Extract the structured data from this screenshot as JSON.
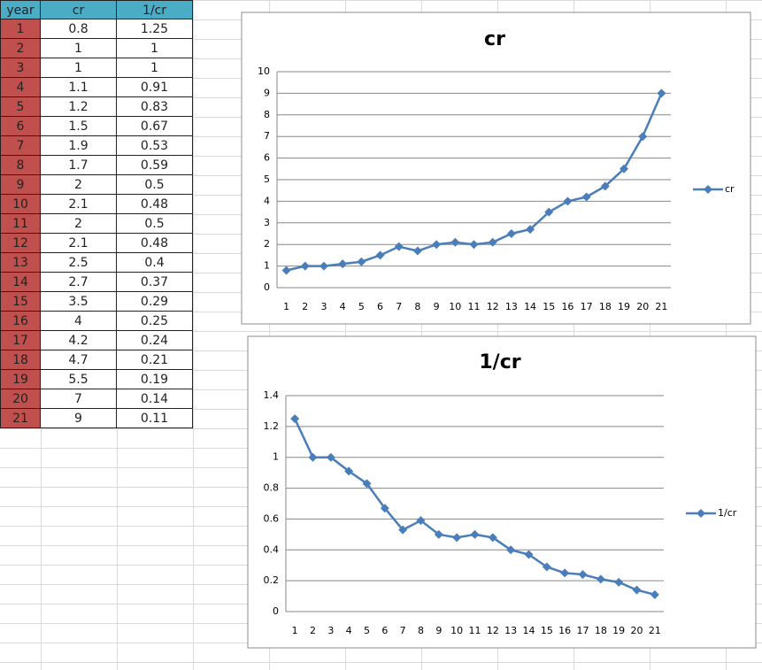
{
  "table": {
    "header": [
      "year",
      "cr",
      "1/cr"
    ],
    "rows": [
      [
        "1",
        "0.8",
        "1.25"
      ],
      [
        "2",
        "1",
        "1"
      ],
      [
        "3",
        "1",
        "1"
      ],
      [
        "4",
        "1.1",
        "0.91"
      ],
      [
        "5",
        "1.2",
        "0.83"
      ],
      [
        "6",
        "1.5",
        "0.67"
      ],
      [
        "7",
        "1.9",
        "0.53"
      ],
      [
        "8",
        "1.7",
        "0.59"
      ],
      [
        "9",
        "2",
        "0.5"
      ],
      [
        "10",
        "2.1",
        "0.48"
      ],
      [
        "11",
        "2",
        "0.5"
      ],
      [
        "12",
        "2.1",
        "0.48"
      ],
      [
        "13",
        "2.5",
        "0.4"
      ],
      [
        "14",
        "2.7",
        "0.37"
      ],
      [
        "15",
        "3.5",
        "0.29"
      ],
      [
        "16",
        "4",
        "0.25"
      ],
      [
        "17",
        "4.2",
        "0.24"
      ],
      [
        "18",
        "4.7",
        "0.21"
      ],
      [
        "19",
        "5.5",
        "0.19"
      ],
      [
        "20",
        "7",
        "0.14"
      ],
      [
        "21",
        "9",
        "0.11"
      ]
    ]
  },
  "chart_data": [
    {
      "type": "line",
      "title": "cr",
      "categories": [
        "1",
        "2",
        "3",
        "4",
        "5",
        "6",
        "7",
        "8",
        "9",
        "10",
        "11",
        "12",
        "13",
        "14",
        "15",
        "16",
        "17",
        "18",
        "19",
        "20",
        "21"
      ],
      "series": [
        {
          "name": "cr",
          "color": "#4a7ebb",
          "values": [
            0.8,
            1,
            1,
            1.1,
            1.2,
            1.5,
            1.9,
            1.7,
            2,
            2.1,
            2,
            2.1,
            2.5,
            2.7,
            3.5,
            4,
            4.2,
            4.7,
            5.5,
            7,
            9
          ]
        }
      ],
      "ylim": [
        0,
        10
      ],
      "yticks": [
        0,
        1,
        2,
        3,
        4,
        5,
        6,
        7,
        8,
        9,
        10
      ],
      "grid": true,
      "legend": "right"
    },
    {
      "type": "line",
      "title": "1/cr",
      "categories": [
        "1",
        "2",
        "3",
        "4",
        "5",
        "6",
        "7",
        "8",
        "9",
        "10",
        "11",
        "12",
        "13",
        "14",
        "15",
        "16",
        "17",
        "18",
        "19",
        "20",
        "21"
      ],
      "series": [
        {
          "name": "1/cr",
          "color": "#4a7ebb",
          "values": [
            1.25,
            1,
            1,
            0.91,
            0.83,
            0.67,
            0.53,
            0.59,
            0.5,
            0.48,
            0.5,
            0.48,
            0.4,
            0.37,
            0.29,
            0.25,
            0.24,
            0.21,
            0.19,
            0.14,
            0.11
          ]
        }
      ],
      "ylim": [
        0,
        1.4
      ],
      "yticks": [
        0,
        0.2,
        0.4,
        0.6,
        0.8,
        1,
        1.2,
        1.4
      ],
      "grid": true,
      "legend": "right"
    }
  ]
}
